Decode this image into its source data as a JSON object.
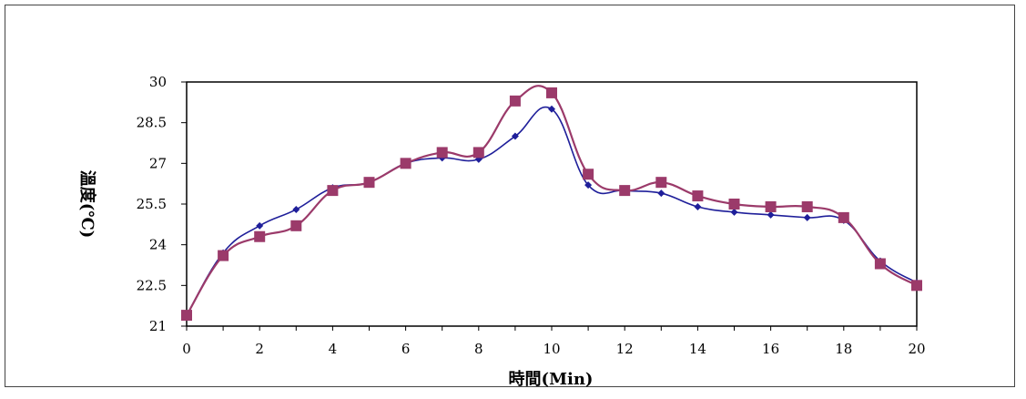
{
  "chart_data": {
    "type": "line",
    "title": "",
    "xlabel": "時間(Min)",
    "ylabel": "溫度(℃)",
    "xlim": [
      0,
      20
    ],
    "ylim": [
      21,
      30
    ],
    "xticks": [
      "0",
      "2",
      "4",
      "6",
      "8",
      "10",
      "12",
      "14",
      "16",
      "18",
      "20"
    ],
    "yticks": [
      "21",
      "22.5",
      "24",
      "25.5",
      "27",
      "28.5",
      "30"
    ],
    "grid": false,
    "legend": "none",
    "x": [
      0,
      1,
      2,
      3,
      4,
      5,
      6,
      7,
      8,
      9,
      10,
      11,
      12,
      13,
      14,
      15,
      16,
      17,
      18,
      19,
      20
    ],
    "series": [
      {
        "color": "#1f1f9a",
        "marker": "diamond",
        "values": [
          21.4,
          23.7,
          24.7,
          25.3,
          26.1,
          26.3,
          27.0,
          27.2,
          27.15,
          28.0,
          29.0,
          26.2,
          26.0,
          25.9,
          25.4,
          25.2,
          25.1,
          25.0,
          24.9,
          23.4,
          22.6
        ]
      },
      {
        "color": "#9b3a6a",
        "marker": "square",
        "values": [
          21.4,
          23.6,
          24.3,
          24.7,
          26.0,
          26.3,
          27.0,
          27.4,
          27.4,
          29.3,
          29.6,
          26.6,
          26.0,
          26.3,
          25.8,
          25.5,
          25.4,
          25.4,
          25.0,
          23.3,
          22.5
        ]
      }
    ]
  }
}
